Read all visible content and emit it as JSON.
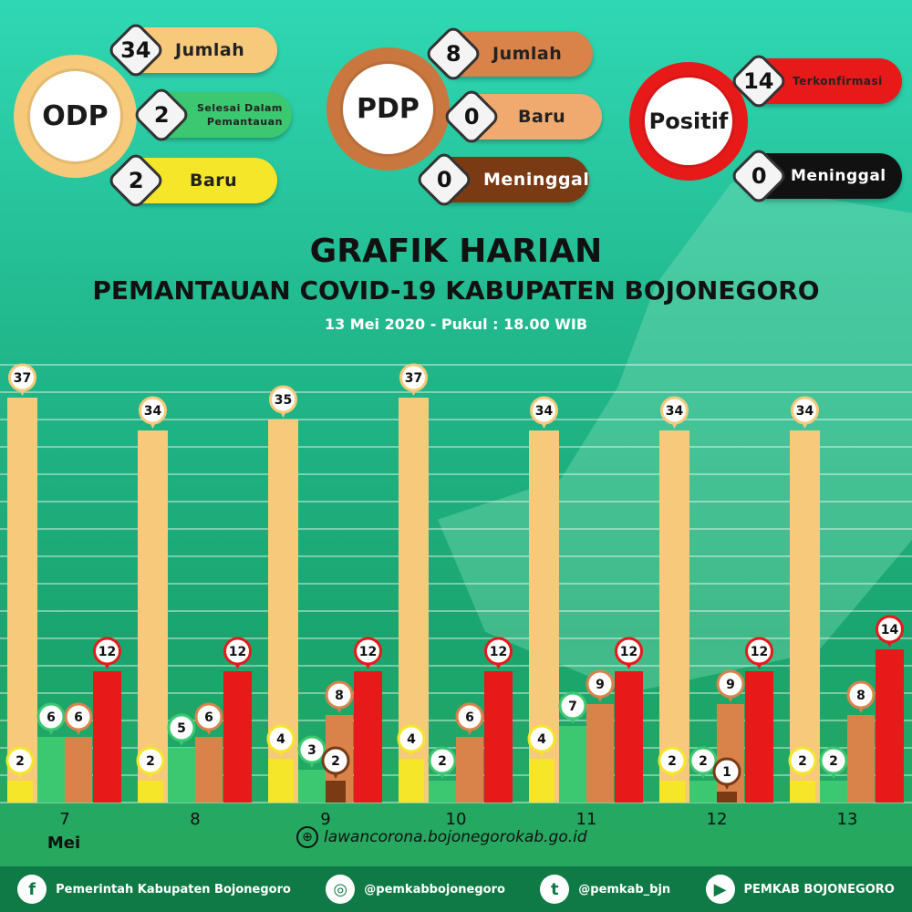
{
  "summary": {
    "odp": {
      "label": "ODP",
      "jumlah": "34",
      "jumlah_label": "Jumlah",
      "selesai": "2",
      "selesai_label_1": "Selesai Dalam",
      "selesai_label_2": "Pemantauan",
      "baru": "2",
      "baru_label": "Baru"
    },
    "pdp": {
      "label": "PDP",
      "jumlah": "8",
      "jumlah_label": "Jumlah",
      "baru": "0",
      "baru_label": "Baru",
      "meninggal": "0",
      "meninggal_label": "Meninggal"
    },
    "positif": {
      "label": "Positif",
      "terkonfirmasi": "14",
      "terkonfirmasi_label": "Terkonfirmasi",
      "meninggal": "0",
      "meninggal_label": "Meninggal"
    }
  },
  "header": {
    "title": "GRAFIK HARIAN",
    "subtitle": "PEMANTAUAN COVID-19 KABUPATEN BOJONEGORO",
    "date": "13 Mei 2020 - Pukul : 18.00 WIB"
  },
  "chart_data": {
    "type": "bar",
    "categories": [
      "7",
      "8",
      "9",
      "10",
      "11",
      "12",
      "13"
    ],
    "x_month_label": "Mei",
    "ylim": [
      0,
      40
    ],
    "series": [
      {
        "color": "#f7c97a",
        "values": [
          37,
          34,
          35,
          37,
          34,
          34,
          34
        ]
      },
      {
        "color": "#f5e62a",
        "values": [
          2,
          2,
          4,
          4,
          4,
          2,
          2
        ]
      },
      {
        "color": "#3cc870",
        "values": [
          6,
          5,
          3,
          2,
          7,
          2,
          2
        ]
      },
      {
        "color": "#d9834b",
        "values": [
          6,
          6,
          8,
          6,
          9,
          9,
          8
        ]
      },
      {
        "color": "#7a3a14",
        "values": [
          0,
          0,
          2,
          0,
          0,
          1,
          0
        ]
      },
      {
        "color": "#e81919",
        "values": [
          12,
          12,
          12,
          12,
          12,
          12,
          14
        ]
      }
    ],
    "grid": true
  },
  "website": "lawancorona.bojonegorokab.go.id",
  "footer": {
    "facebook": "Pemerintah Kabupaten Bojonegoro",
    "instagram": "@pemkabbojonegoro",
    "twitter": "@pemkab_bjn",
    "youtube": "PEMKAB BOJONEGORO",
    "facebook_icon": "f",
    "instagram_icon": "◎",
    "twitter_icon": "t",
    "youtube_icon": "▶"
  },
  "colors": {
    "odp": "#f7c97a",
    "odp_selesai": "#3cc870",
    "odp_baru": "#f5e62a",
    "pdp": "#d9834b",
    "pdp_meninggal": "#7a3a14",
    "positif": "#e81919",
    "positif_meninggal": "#111111"
  }
}
